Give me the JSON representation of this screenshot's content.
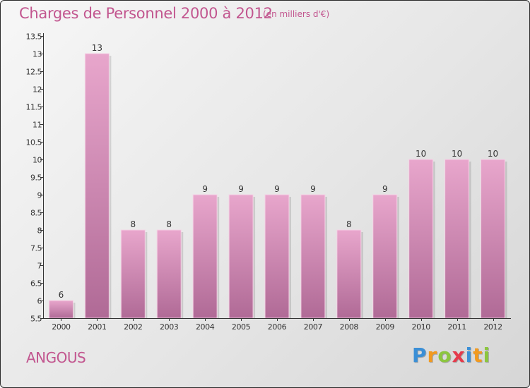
{
  "title": "Charges de Personnel 2000 à 2012",
  "subtitle": "(en milliers d'€)",
  "commune": "ANGOUS",
  "logo": {
    "text": "Proxiti",
    "letters": [
      "P",
      "r",
      "o",
      "x",
      "i",
      "t",
      "i"
    ],
    "colors": [
      "#3b8fd6",
      "#f29a1f",
      "#8cc63f",
      "#e53a4b",
      "#3b8fd6",
      "#f29a1f",
      "#8cc63f"
    ]
  },
  "colors": {
    "accent": "#c2568f",
    "bar_top": "#e8a6cc",
    "bar_bottom": "#b06a96"
  },
  "chart_data": {
    "type": "bar",
    "categories": [
      "2000",
      "2001",
      "2002",
      "2003",
      "2004",
      "2005",
      "2006",
      "2007",
      "2008",
      "2009",
      "2010",
      "2011",
      "2012"
    ],
    "values": [
      6,
      13,
      8,
      8,
      9,
      9,
      9,
      9,
      8,
      9,
      10,
      10,
      10
    ],
    "ylim": [
      5.5,
      13.5
    ],
    "yticks": [
      "5.5",
      "6",
      "6.5",
      "7",
      "7.5",
      "8",
      "8.5",
      "9",
      "9.5",
      "10",
      "10.5",
      "11",
      "11.5",
      "12",
      "12.5",
      "13",
      "13.5"
    ],
    "grid": false,
    "legend": "none"
  }
}
